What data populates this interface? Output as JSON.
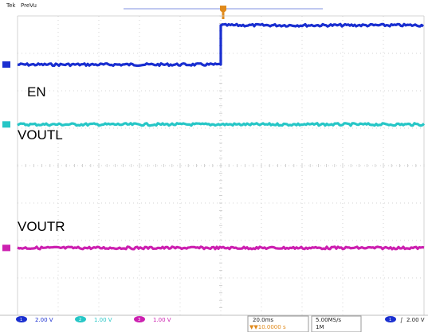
{
  "header": {
    "brand": "Tek",
    "mode": "PreVu"
  },
  "colors": {
    "ch1": "#1a2fd0",
    "ch2": "#26c6c6",
    "ch3": "#cc20b0",
    "trigger": "#e08a1c",
    "grid": "#c8c8c8"
  },
  "chart_data": {
    "type": "line",
    "title": "",
    "xlabel": "",
    "ylabel": "",
    "x_divisions": 10,
    "y_divisions": 8,
    "timebase": "20.0ms",
    "x_range_div": [
      0,
      10
    ],
    "trigger_div": 5,
    "series": [
      {
        "name": "EN",
        "channel": "1",
        "color": "#1a2fd0",
        "x_div": [
          0,
          5,
          5,
          10
        ],
        "y_div": [
          6.7,
          6.7,
          7.75,
          7.75
        ]
      },
      {
        "name": "VOUTL",
        "channel": "2",
        "color": "#26c6c6",
        "x_div": [
          0,
          10
        ],
        "y_div": [
          5.1,
          5.1
        ]
      },
      {
        "name": "VOUTR",
        "channel": "3",
        "color": "#cc20b0",
        "x_div": [
          0,
          10
        ],
        "y_div": [
          1.8,
          1.8
        ]
      }
    ]
  },
  "readout": {
    "ch1_scale": "2.00 V",
    "ch2_scale": "1.00 V",
    "ch3_scale": "1.00 V",
    "timebase": "20.0ms",
    "trigger_pos": "▼▼10.0000 s",
    "sample_rate": "5.00MS/s",
    "record_length": "1M",
    "trig_channel": "1",
    "trig_slope": "∫",
    "trig_level": "2.00 V"
  }
}
